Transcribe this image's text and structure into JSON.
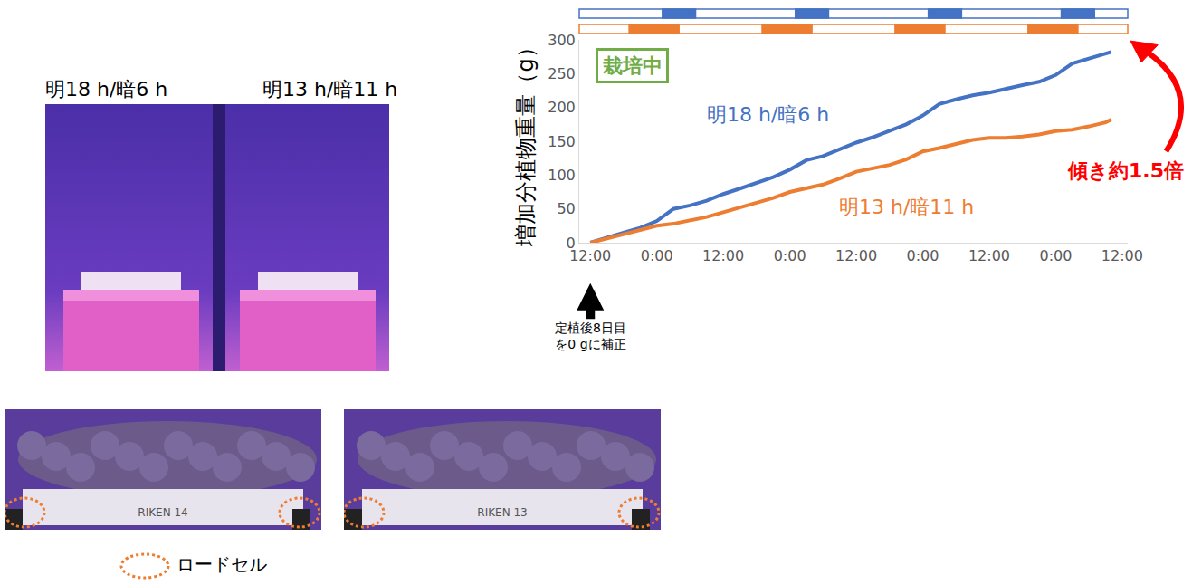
{
  "chart_data": {
    "type": "line",
    "y_label": "増加分植物重量（g）",
    "x": [
      0,
      3,
      6,
      9,
      12,
      15,
      18,
      21,
      24,
      27,
      30,
      33,
      36,
      39,
      42,
      45,
      48,
      51,
      54,
      57,
      60,
      63,
      66,
      69,
      72,
      75,
      78,
      81,
      84,
      87,
      90,
      93,
      94
    ],
    "series": [
      {
        "name": "明18 h/暗6 h",
        "color": "#4472c4",
        "values": [
          0,
          8,
          15,
          22,
          32,
          50,
          55,
          62,
          72,
          80,
          88,
          97,
          108,
          122,
          128,
          138,
          148,
          156,
          165,
          175,
          188,
          205,
          212,
          218,
          222,
          228,
          233,
          238,
          248,
          265,
          272,
          280,
          282
        ],
        "dark_periods": [
          [
            13,
            19
          ],
          [
            37,
            43
          ],
          [
            61,
            67
          ],
          [
            85,
            91
          ]
        ]
      },
      {
        "name": "明13 h/暗11 h",
        "color": "#ed7d31",
        "values": [
          0,
          6,
          12,
          18,
          25,
          28,
          33,
          38,
          45,
          52,
          58,
          66,
          75,
          80,
          86,
          95,
          105,
          110,
          115,
          123,
          135,
          140,
          146,
          152,
          155,
          155,
          157,
          160,
          165,
          167,
          172,
          178,
          182
        ],
        "dark_periods": [
          [
            7,
            16
          ],
          [
            31,
            40
          ],
          [
            55,
            64
          ],
          [
            79,
            88
          ]
        ]
      }
    ],
    "xlim": [
      -2,
      97
    ],
    "xticks": [
      {
        "value": 0,
        "label": "12:00"
      },
      {
        "value": 12,
        "label": "0:00"
      },
      {
        "value": 24,
        "label": "12:00"
      },
      {
        "value": 36,
        "label": "0:00"
      },
      {
        "value": 48,
        "label": "12:00"
      },
      {
        "value": 60,
        "label": "0:00"
      },
      {
        "value": 72,
        "label": "12:00"
      },
      {
        "value": 84,
        "label": "0:00"
      },
      {
        "value": 96,
        "label": "12:00"
      }
    ],
    "ylim": [
      0,
      300
    ],
    "yticks": [
      0,
      50,
      100,
      150,
      200,
      250,
      300
    ],
    "grid": false,
    "status_label": "栽培中",
    "slope_note": "傾き約1.5倍",
    "baseline_note": [
      "定植後8日目",
      "を0 gに補正"
    ]
  },
  "photos": {
    "labels": [
      "明18 h/暗6 h",
      "明13 h/暗11 h"
    ],
    "tray_labels": [
      "RIKEN 14",
      "RIKEN 13"
    ],
    "marker_note": "ロードセル"
  }
}
